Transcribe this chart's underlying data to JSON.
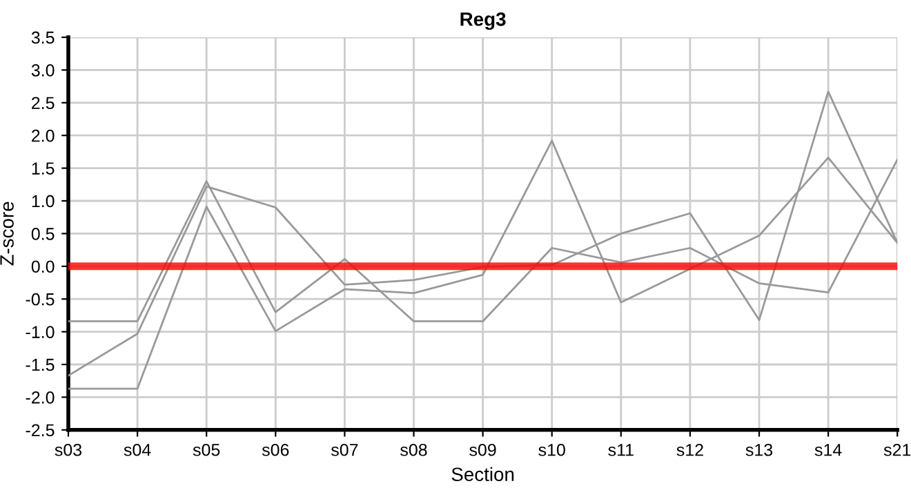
{
  "chart_data": {
    "type": "line",
    "title": "Reg3",
    "xlabel": "Section",
    "ylabel": "Z-score",
    "categories": [
      "s03",
      "s04",
      "s05",
      "s06",
      "s07",
      "s08",
      "s09",
      "s10",
      "s11",
      "s12",
      "s13",
      "s14",
      "s21"
    ],
    "series": [
      {
        "color": "#999999",
        "values": [
          -0.84,
          -0.84,
          1.3,
          -0.7,
          0.11,
          -0.84,
          -0.84,
          0.28,
          0.06,
          0.28,
          -0.26,
          -0.4,
          1.63
        ]
      },
      {
        "color": "#999999",
        "values": [
          -1.67,
          -1.03,
          1.22,
          0.9,
          -0.28,
          -0.21,
          -0.01,
          0.02,
          0.5,
          0.81,
          -0.82,
          2.67,
          0.36
        ]
      },
      {
        "color": "#999999",
        "values": [
          -1.87,
          -1.87,
          0.91,
          -0.99,
          -0.35,
          -0.41,
          -0.13,
          1.92,
          -0.55,
          -0.04,
          0.47,
          1.66,
          0.36
        ]
      }
    ],
    "ylim": [
      -2.5,
      3.5
    ],
    "yticks": [
      -2.5,
      {
        "value": -2,
        "label": "-2.0"
      },
      -1.5,
      {
        "value": -1,
        "label": "-1.0"
      },
      -0.5,
      {
        "value": 0,
        "label": "0.0"
      },
      0.5,
      {
        "value": 1,
        "label": "1.0"
      },
      1.5,
      {
        "value": 2,
        "label": "2.0"
      },
      2.5,
      {
        "value": 3,
        "label": "3.0"
      },
      3.5
    ],
    "ref_lines": [
      {
        "axis": "y",
        "value": 0,
        "color": "#ff0000"
      }
    ],
    "grid": true,
    "marker": "none",
    "line_style": "solid"
  }
}
